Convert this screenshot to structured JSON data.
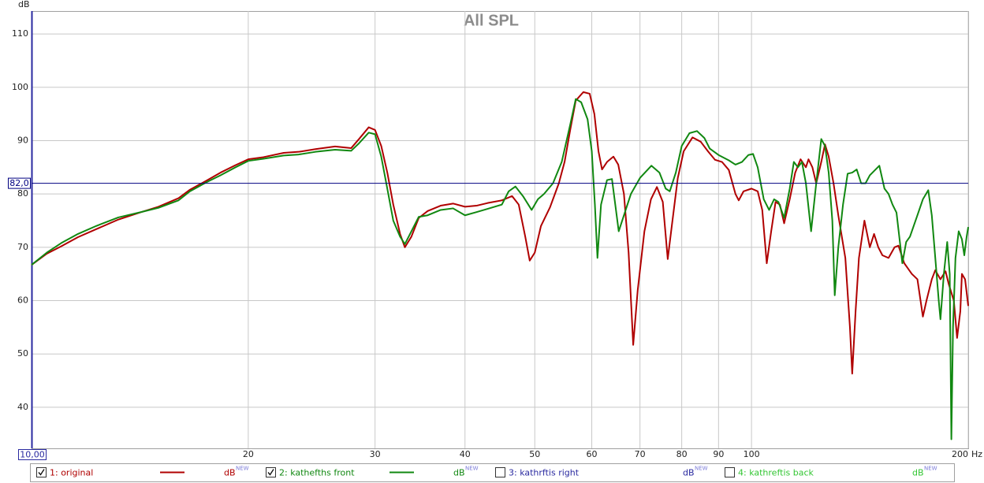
{
  "chart_data": {
    "type": "line",
    "title": "All SPL",
    "y_label": "dB",
    "x_label": "Hz",
    "xscale": "log",
    "grid": true,
    "xlim": [
      10,
      200
    ],
    "ylim": [
      32.3,
      114.3
    ],
    "xticks": [
      {
        "value": 10,
        "label": "10,00"
      },
      20,
      30,
      40,
      50,
      60,
      70,
      80,
      90,
      100,
      200
    ],
    "yticks": [
      40,
      50,
      60,
      70,
      80,
      90,
      100,
      110
    ],
    "cursor": {
      "value": 82,
      "label": "82,0",
      "color": "#000080"
    },
    "series": [
      {
        "name": "1: original",
        "color": "#b00000",
        "checked": true,
        "unit": "dB",
        "badge": "NEW",
        "x": [
          10,
          10.5,
          11,
          11.6,
          12.3,
          13.2,
          14.2,
          15,
          16,
          16.6,
          17.5,
          18.3,
          19.2,
          20,
          21,
          22.4,
          23.5,
          24.8,
          26.4,
          27.8,
          28.5,
          29.4,
          30,
          30.6,
          31.2,
          31.8,
          32.5,
          33,
          33.7,
          34.5,
          35.5,
          37,
          38.5,
          40,
          41.5,
          43,
          45,
          46.5,
          47.5,
          48.5,
          49.2,
          50,
          51,
          52.5,
          54,
          55,
          56,
          57,
          58.4,
          59.6,
          60.5,
          61.3,
          62,
          63,
          64.3,
          65.3,
          66.5,
          67.5,
          68.5,
          69.5,
          71,
          72.5,
          73.9,
          75.3,
          76.5,
          77.5,
          79,
          80.5,
          82.8,
          85,
          87,
          89,
          91,
          93,
          95,
          96,
          97.5,
          100,
          102,
          103.5,
          105,
          106.5,
          108,
          109.5,
          111,
          113,
          115,
          117,
          119,
          120,
          121.5,
          123,
          125,
          126.5,
          128,
          130,
          132,
          135,
          137,
          138,
          139.5,
          141,
          143.5,
          145,
          146,
          148,
          150,
          152,
          155,
          158,
          160,
          163,
          165,
          167,
          170,
          173,
          175,
          178,
          180,
          183,
          186,
          188,
          191,
          193,
          195,
          196,
          198,
          200
        ],
        "values": [
          66.7,
          68.8,
          70.2,
          71.9,
          73.4,
          75.2,
          76.6,
          77.6,
          79.2,
          80.8,
          82.5,
          84,
          85.4,
          86.5,
          86.9,
          87.7,
          87.9,
          88.4,
          88.9,
          88.6,
          90.3,
          92.5,
          92,
          89,
          84,
          78,
          72.5,
          70,
          72,
          75.5,
          76.8,
          77.8,
          78.2,
          77.6,
          77.8,
          78.3,
          78.8,
          79.6,
          78,
          72,
          67.5,
          69,
          74,
          77.5,
          82,
          86,
          92,
          97.5,
          99.1,
          98.8,
          95,
          88,
          84.6,
          86,
          87,
          85.5,
          80,
          69,
          51.7,
          62,
          73,
          79,
          81.3,
          78.5,
          67.8,
          74,
          83,
          88,
          90.6,
          89.8,
          88,
          86.4,
          86,
          84.5,
          80,
          78.8,
          80.5,
          81,
          80.5,
          77,
          67,
          73,
          78.5,
          78,
          74.5,
          79,
          84,
          86.5,
          85,
          86.5,
          85,
          82,
          86,
          89.3,
          87,
          82,
          76,
          68,
          55,
          46.3,
          58,
          68,
          75,
          72,
          70,
          72.5,
          70,
          68.5,
          68,
          70,
          70.3,
          67,
          66,
          65,
          64,
          57,
          60,
          64,
          65.7,
          64,
          65.5,
          63,
          60,
          53,
          58,
          65,
          64,
          59
        ]
      },
      {
        "name": "2: kathefths front",
        "color": "#118811",
        "checked": true,
        "unit": "dB",
        "badge": "NEW",
        "x": [
          10,
          10.5,
          11,
          11.6,
          12.3,
          13.2,
          14.2,
          15,
          16,
          16.6,
          17.5,
          18.3,
          19.2,
          20,
          21,
          22.4,
          23.5,
          24.8,
          26.4,
          27.8,
          28.5,
          29.4,
          30,
          30.6,
          31.2,
          31.8,
          32.5,
          33,
          33.7,
          34.5,
          35.5,
          37,
          38.5,
          40,
          41.5,
          43,
          45,
          46,
          47,
          48.2,
          49.5,
          50.5,
          51.5,
          53,
          54.5,
          56,
          57,
          58,
          59.2,
          60,
          60.6,
          61.1,
          61.8,
          63,
          64,
          65.4,
          66.5,
          68,
          70,
          72.6,
          74.5,
          76,
          77,
          78.5,
          80,
          82,
          84,
          86,
          87.5,
          90,
          93,
          95,
          97,
          99,
          100.5,
          102,
          104,
          105.8,
          107.5,
          109,
          111,
          113,
          114.5,
          116,
          117.5,
          119,
          121,
          123,
          125,
          126.5,
          128,
          129.5,
          130.5,
          132,
          134,
          136,
          138,
          140,
          142,
          144,
          146,
          150.5,
          153,
          155,
          157,
          159,
          162,
          164,
          166,
          170,
          173,
          176,
          178,
          180,
          182,
          183,
          185,
          187,
          188.5,
          189.5,
          190.5,
          192,
          194,
          196,
          197.5,
          199,
          200
        ],
        "values": [
          66.7,
          69,
          70.8,
          72.5,
          74,
          75.6,
          76.6,
          77.4,
          78.8,
          80.5,
          82.2,
          83.5,
          85,
          86.2,
          86.6,
          87.2,
          87.4,
          87.9,
          88.3,
          88.1,
          89.5,
          91.5,
          91.2,
          87,
          81,
          75,
          72,
          70.6,
          73,
          75.7,
          76,
          77,
          77.3,
          76,
          76.6,
          77.2,
          78,
          80.5,
          81.4,
          79.5,
          77,
          79,
          80,
          82,
          86,
          93,
          97.8,
          97.2,
          94,
          88,
          78,
          68,
          78,
          82.6,
          82.8,
          73,
          76,
          80,
          83,
          85.3,
          84,
          81,
          80.5,
          84,
          89,
          91.4,
          91.8,
          90.5,
          88.5,
          87.3,
          86.3,
          85.5,
          86,
          87.3,
          87.5,
          85,
          79,
          77,
          79,
          78.5,
          75.5,
          81,
          86,
          85,
          86,
          82,
          73,
          82,
          90.3,
          89,
          84,
          75,
          61,
          70,
          78,
          83.8,
          84,
          84.6,
          82,
          82,
          83.5,
          85.3,
          81,
          80,
          78,
          76.5,
          67,
          71,
          72,
          76,
          79,
          80.7,
          76,
          68,
          60,
          56.5,
          65,
          71,
          65,
          34,
          55,
          68,
          73,
          71.5,
          68.5,
          72,
          73.8
        ]
      },
      {
        "name": "3: kathrftis right",
        "color": "#2a2aa0",
        "checked": false,
        "unit": "dB",
        "badge": "NEW",
        "x": [],
        "values": []
      },
      {
        "name": "4: kathreftis back",
        "color": "#33c633",
        "checked": false,
        "unit": "dB",
        "badge": "NEW",
        "x": [],
        "values": []
      }
    ]
  }
}
